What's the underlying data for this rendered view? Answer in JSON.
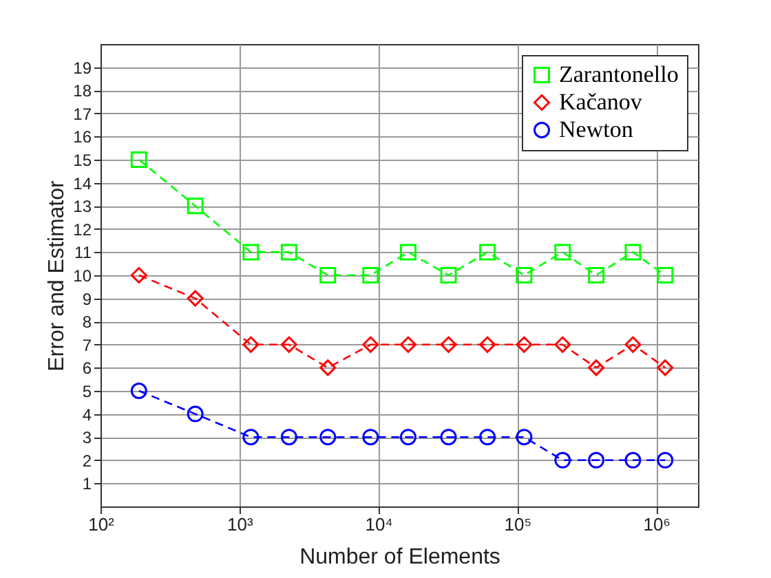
{
  "chart_data": {
    "type": "line",
    "xlabel": "Number of Elements",
    "ylabel": "Error and Estimator",
    "log": "x",
    "grid": true,
    "legend": "top right",
    "line_style": "dashed",
    "x": [
      189,
      481,
      1208,
      2276,
      4330,
      8790,
      16400,
      32000,
      61000,
      112000,
      212000,
      370000,
      680000,
      1160000
    ],
    "xlim": [
      100,
      2000000
    ],
    "xticks": [
      {
        "value": 100,
        "label": "10²"
      },
      {
        "value": 1000,
        "label": "10³"
      },
      {
        "value": 10000,
        "label": "10⁴"
      },
      {
        "value": 100000,
        "label": "10⁵"
      },
      {
        "value": 1000000,
        "label": "10⁶"
      }
    ],
    "ylim": [
      0,
      20
    ],
    "yticks": [
      1,
      2,
      3,
      4,
      5,
      6,
      7,
      8,
      9,
      10,
      11,
      12,
      13,
      14,
      15,
      16,
      17,
      18,
      19
    ],
    "series": [
      {
        "name": "Zarantonello",
        "color": "#00ff00",
        "marker": "square",
        "values": [
          15,
          13,
          11,
          11,
          10,
          10,
          11,
          10,
          11,
          10,
          11,
          10,
          11,
          10
        ]
      },
      {
        "name": "Kačanov",
        "color": "#ff0000",
        "marker": "diamond",
        "values": [
          10,
          9,
          7,
          7,
          6,
          7,
          7,
          7,
          7,
          7,
          7,
          6,
          7,
          6
        ]
      },
      {
        "name": "Newton",
        "color": "#0000ff",
        "marker": "circle",
        "values": [
          5,
          4,
          3,
          3,
          3,
          3,
          3,
          3,
          3,
          3,
          2,
          2,
          2,
          2
        ]
      }
    ]
  }
}
